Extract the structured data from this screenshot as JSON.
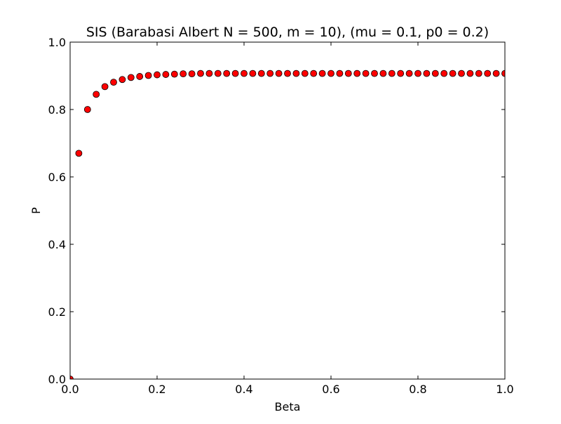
{
  "chart_data": {
    "type": "scatter",
    "title": "SIS (Barabasi Albert N = 500, m = 10), (mu = 0.1, p0 = 0.2)",
    "xlabel": "Beta",
    "ylabel": "P",
    "xlim": [
      0.0,
      1.0
    ],
    "ylim": [
      0.0,
      1.0
    ],
    "xticks": [
      "0.0",
      "0.2",
      "0.4",
      "0.6",
      "0.8",
      "1.0"
    ],
    "yticks": [
      "0.0",
      "0.2",
      "0.4",
      "0.6",
      "0.8",
      "1.0"
    ],
    "grid": false,
    "marker_color": "#ff0000",
    "marker_edge_color": "#000000",
    "x": [
      0.0,
      0.02,
      0.04,
      0.06,
      0.08,
      0.1,
      0.12,
      0.14,
      0.16,
      0.18,
      0.2,
      0.22,
      0.24,
      0.26,
      0.28,
      0.3,
      0.32,
      0.34,
      0.36,
      0.38,
      0.4,
      0.42,
      0.44,
      0.46,
      0.48,
      0.5,
      0.52,
      0.54,
      0.56,
      0.58,
      0.6,
      0.62,
      0.64,
      0.66,
      0.68,
      0.7,
      0.72,
      0.74,
      0.76,
      0.78,
      0.8,
      0.82,
      0.84,
      0.86,
      0.88,
      0.9,
      0.92,
      0.94,
      0.96,
      0.98,
      1.0
    ],
    "y": [
      0.0,
      0.67,
      0.8,
      0.845,
      0.868,
      0.881,
      0.889,
      0.895,
      0.898,
      0.901,
      0.903,
      0.904,
      0.905,
      0.906,
      0.906,
      0.907,
      0.907,
      0.907,
      0.907,
      0.907,
      0.907,
      0.907,
      0.907,
      0.907,
      0.907,
      0.907,
      0.907,
      0.907,
      0.907,
      0.907,
      0.907,
      0.907,
      0.907,
      0.907,
      0.907,
      0.907,
      0.907,
      0.907,
      0.907,
      0.907,
      0.907,
      0.907,
      0.907,
      0.907,
      0.907,
      0.907,
      0.907,
      0.907,
      0.907,
      0.907,
      0.907
    ]
  }
}
